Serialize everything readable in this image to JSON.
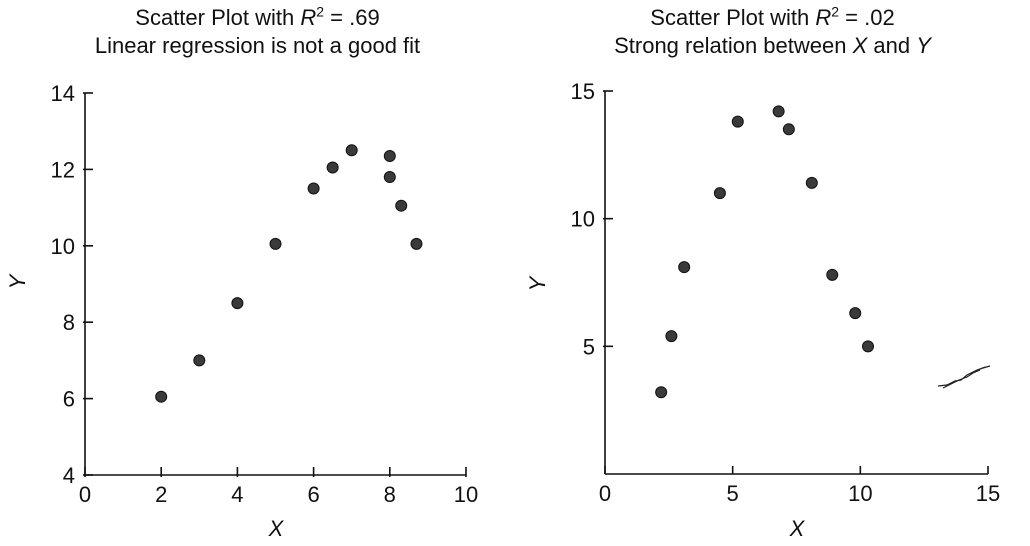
{
  "chart_data": [
    {
      "type": "scatter",
      "title_prefix": "Scatter Plot with ",
      "title_r": "R",
      "title_sup": "2",
      "title_value": " = .69",
      "subtitle": "Linear regression is not a good fit",
      "xlabel": "X",
      "ylabel": "Y",
      "xlim": [
        0,
        10
      ],
      "ylim": [
        4,
        14
      ],
      "xticks": [
        0,
        2,
        4,
        6,
        8,
        10
      ],
      "yticks": [
        4,
        6,
        8,
        10,
        12,
        14
      ],
      "grid": false,
      "points": [
        {
          "x": 2,
          "y": 6.05
        },
        {
          "x": 3,
          "y": 7.0
        },
        {
          "x": 4,
          "y": 8.5
        },
        {
          "x": 5,
          "y": 10.05
        },
        {
          "x": 6,
          "y": 11.5
        },
        {
          "x": 6.5,
          "y": 12.05
        },
        {
          "x": 7,
          "y": 12.5
        },
        {
          "x": 8,
          "y": 12.35
        },
        {
          "x": 8,
          "y": 11.8
        },
        {
          "x": 8.3,
          "y": 11.05
        },
        {
          "x": 8.7,
          "y": 10.05
        }
      ]
    },
    {
      "type": "scatter",
      "title_prefix": "Scatter Plot with ",
      "title_r": "R",
      "title_sup": "2",
      "title_value": " = .02",
      "subtitle_a": "Strong relation between ",
      "subtitle_x": "X",
      "subtitle_b": " and ",
      "subtitle_y": "Y",
      "xlabel": "X",
      "ylabel": "Y",
      "xlim": [
        0,
        15
      ],
      "ylim": [
        0,
        15
      ],
      "xticks": [
        0,
        5,
        10,
        15
      ],
      "yticks": [
        5,
        10,
        15
      ],
      "grid": false,
      "points": [
        {
          "x": 2.2,
          "y": 3.2
        },
        {
          "x": 2.6,
          "y": 5.4
        },
        {
          "x": 3.1,
          "y": 8.1
        },
        {
          "x": 4.5,
          "y": 11.0
        },
        {
          "x": 5.2,
          "y": 13.8
        },
        {
          "x": 6.8,
          "y": 14.2
        },
        {
          "x": 7.2,
          "y": 13.5
        },
        {
          "x": 8.1,
          "y": 11.4
        },
        {
          "x": 8.9,
          "y": 7.8
        },
        {
          "x": 9.8,
          "y": 6.3
        },
        {
          "x": 10.3,
          "y": 5.0
        }
      ]
    }
  ]
}
